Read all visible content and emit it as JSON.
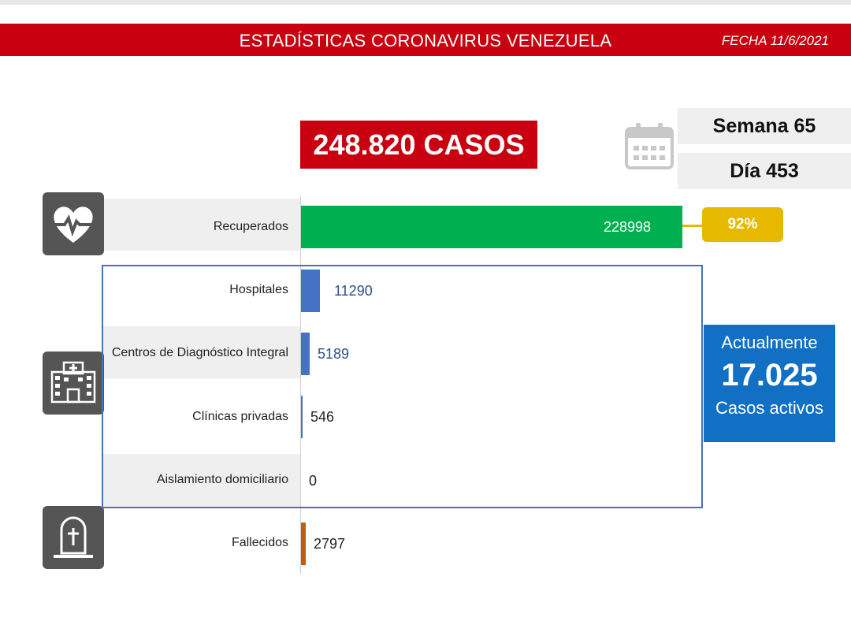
{
  "header": {
    "title": "ESTADÍSTICAS CORONAVIRUS VENEZUELA",
    "date": "FECHA 11/6/2021"
  },
  "summary": {
    "total_cases": "248.820 CASOS",
    "week": "Semana 65",
    "day": "Día 453",
    "recovered_percent": "92%",
    "active_heading": "Actualmente",
    "active_count": "17.025",
    "active_caption": "Casos activos"
  },
  "icons": {
    "calendar": "calendar-icon",
    "recovered": "heart-pulse-icon",
    "hospital": "hospital-icon",
    "deceased": "tombstone-icon"
  },
  "chart_data": {
    "type": "bar",
    "orientation": "horizontal",
    "categories": [
      "Recuperados",
      "Hospitales",
      "Centros de Diagnóstico Integral",
      "Clínicas privadas",
      "Aislamiento domiciliario",
      "Fallecidos"
    ],
    "values": [
      228998,
      11290,
      5189,
      546,
      0,
      2797
    ],
    "value_labels": [
      "228998",
      "11290",
      "5189",
      "546",
      "0",
      "2797"
    ],
    "colors": [
      "#00b050",
      "#4472c4",
      "#4472c4",
      "#4472c4",
      "#4472c4",
      "#c55a11"
    ],
    "xlim": [
      0,
      228998
    ]
  }
}
